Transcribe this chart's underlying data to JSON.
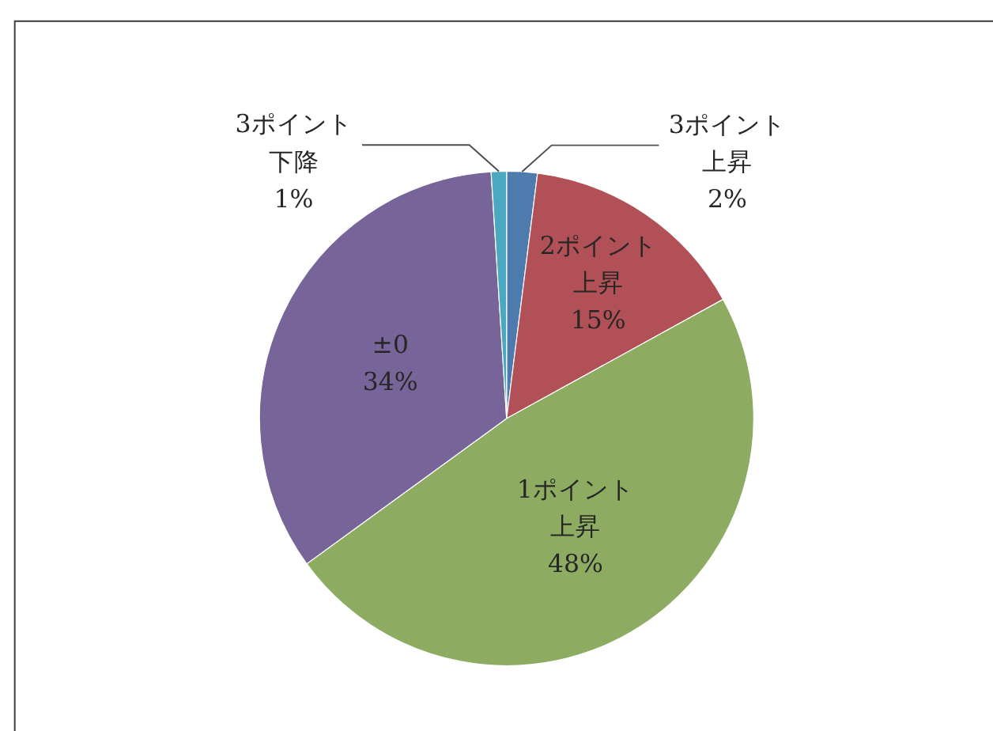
{
  "chart_data": {
    "type": "pie",
    "categories": [
      "3ポイント上昇",
      "2ポイント上昇",
      "1ポイント上昇",
      "±0",
      "3ポイント下降"
    ],
    "values": [
      2,
      15,
      48,
      34,
      1
    ],
    "colors": [
      "#4e7bae",
      "#b15056",
      "#8dac62",
      "#776499",
      "#4aa8c1"
    ],
    "value_labels": [
      "2%",
      "15%",
      "48%",
      "34%",
      "1%"
    ]
  }
}
